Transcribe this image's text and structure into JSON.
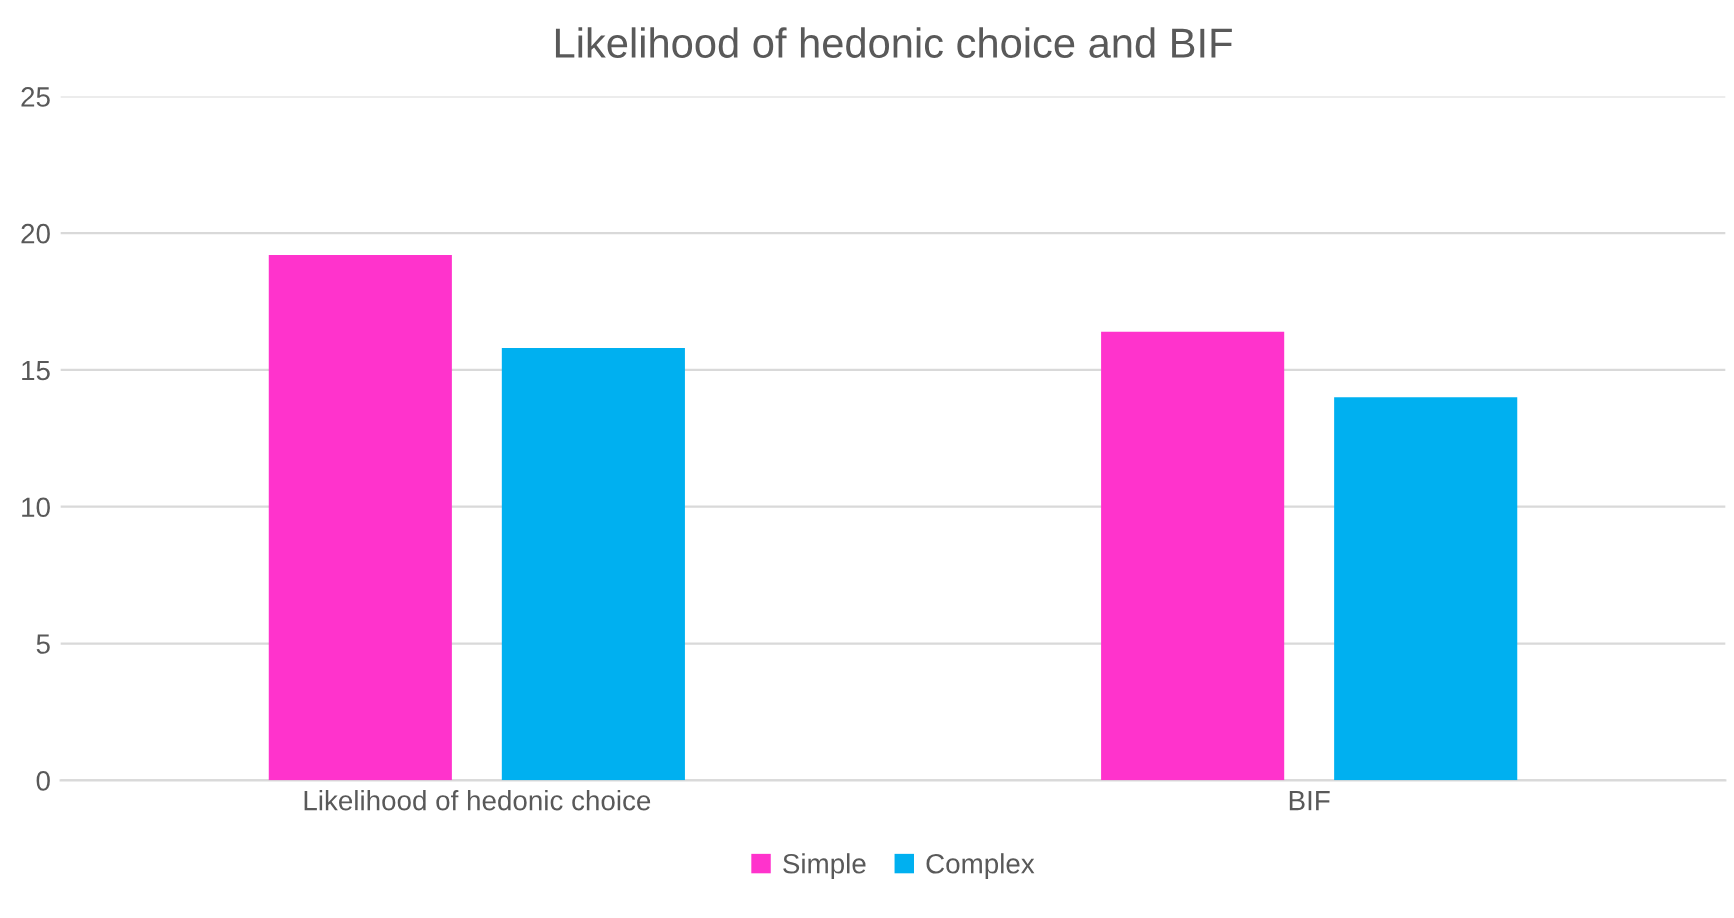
{
  "chart_data": {
    "type": "bar",
    "title": "Likelihood of hedonic choice and BIF",
    "categories": [
      "Likelihood of hedonic choice",
      "BIF"
    ],
    "series": [
      {
        "name": "Simple",
        "color": "#ff33cc",
        "values": [
          19.2,
          16.4
        ]
      },
      {
        "name": "Complex",
        "color": "#00b0f0",
        "values": [
          15.8,
          14.0
        ]
      }
    ],
    "ylim": [
      0,
      25
    ],
    "yticks": [
      0,
      5,
      10,
      15,
      20,
      25
    ],
    "grid": "y",
    "legend": "bottom"
  }
}
